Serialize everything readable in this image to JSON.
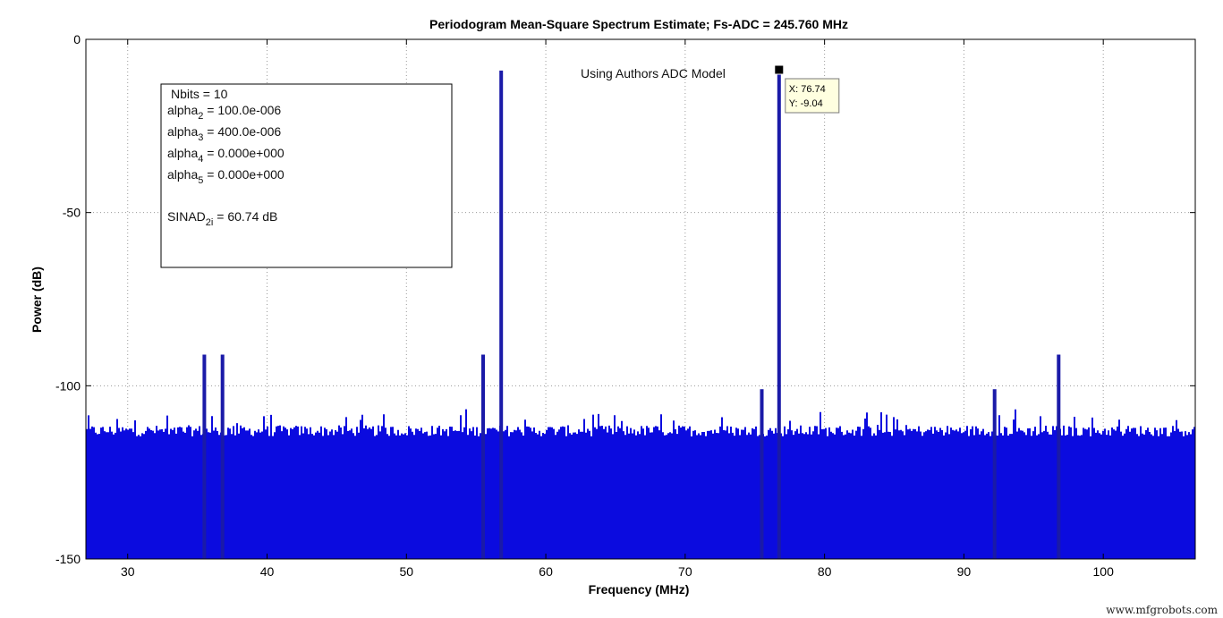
{
  "chart_data": {
    "type": "bar",
    "title": "Periodogram Mean-Square Spectrum Estimate; Fs-ADC = 245.760 MHz",
    "xlabel": "Frequency (MHz)",
    "ylabel": "Power (dB)",
    "xlim": [
      27,
      106.6
    ],
    "ylim": [
      -150,
      0
    ],
    "xticks": [
      30,
      40,
      50,
      60,
      70,
      80,
      90,
      100
    ],
    "yticks": [
      0,
      -50,
      -100,
      -150
    ],
    "grid": true,
    "bar_color": "#0b0bdf",
    "spike_color": "#1a1aa8",
    "noise_floor_db": -113,
    "spectral_peaks": [
      {
        "x": 35.5,
        "y": -91
      },
      {
        "x": 36.8,
        "y": -91
      },
      {
        "x": 55.5,
        "y": -91
      },
      {
        "x": 56.8,
        "y": -9
      },
      {
        "x": 75.5,
        "y": -101
      },
      {
        "x": 76.74,
        "y": -9.04
      },
      {
        "x": 92.2,
        "y": -101
      },
      {
        "x": 96.8,
        "y": -91
      }
    ],
    "annotation": "Using Authors ADC Model",
    "datatip": {
      "x_label": "X: 76.74",
      "y_label": "Y: -9.04",
      "x": 76.74,
      "y": -9.04
    },
    "legend_box": {
      "lines": [
        {
          "base": "Nbits = 10",
          "sub": "",
          "tail": ""
        },
        {
          "base": "alpha",
          "sub": "2",
          "tail": " = 100.0e-006"
        },
        {
          "base": "alpha",
          "sub": "3",
          "tail": " = 400.0e-006"
        },
        {
          "base": "alpha",
          "sub": "4",
          "tail": " = 0.000e+000"
        },
        {
          "base": "alpha",
          "sub": "5",
          "tail": " = 0.000e+000"
        },
        {
          "base": "SINAD",
          "sub": "2i",
          "tail": " = 60.74 dB"
        }
      ]
    }
  },
  "watermark": "www.mfgrobots.com"
}
